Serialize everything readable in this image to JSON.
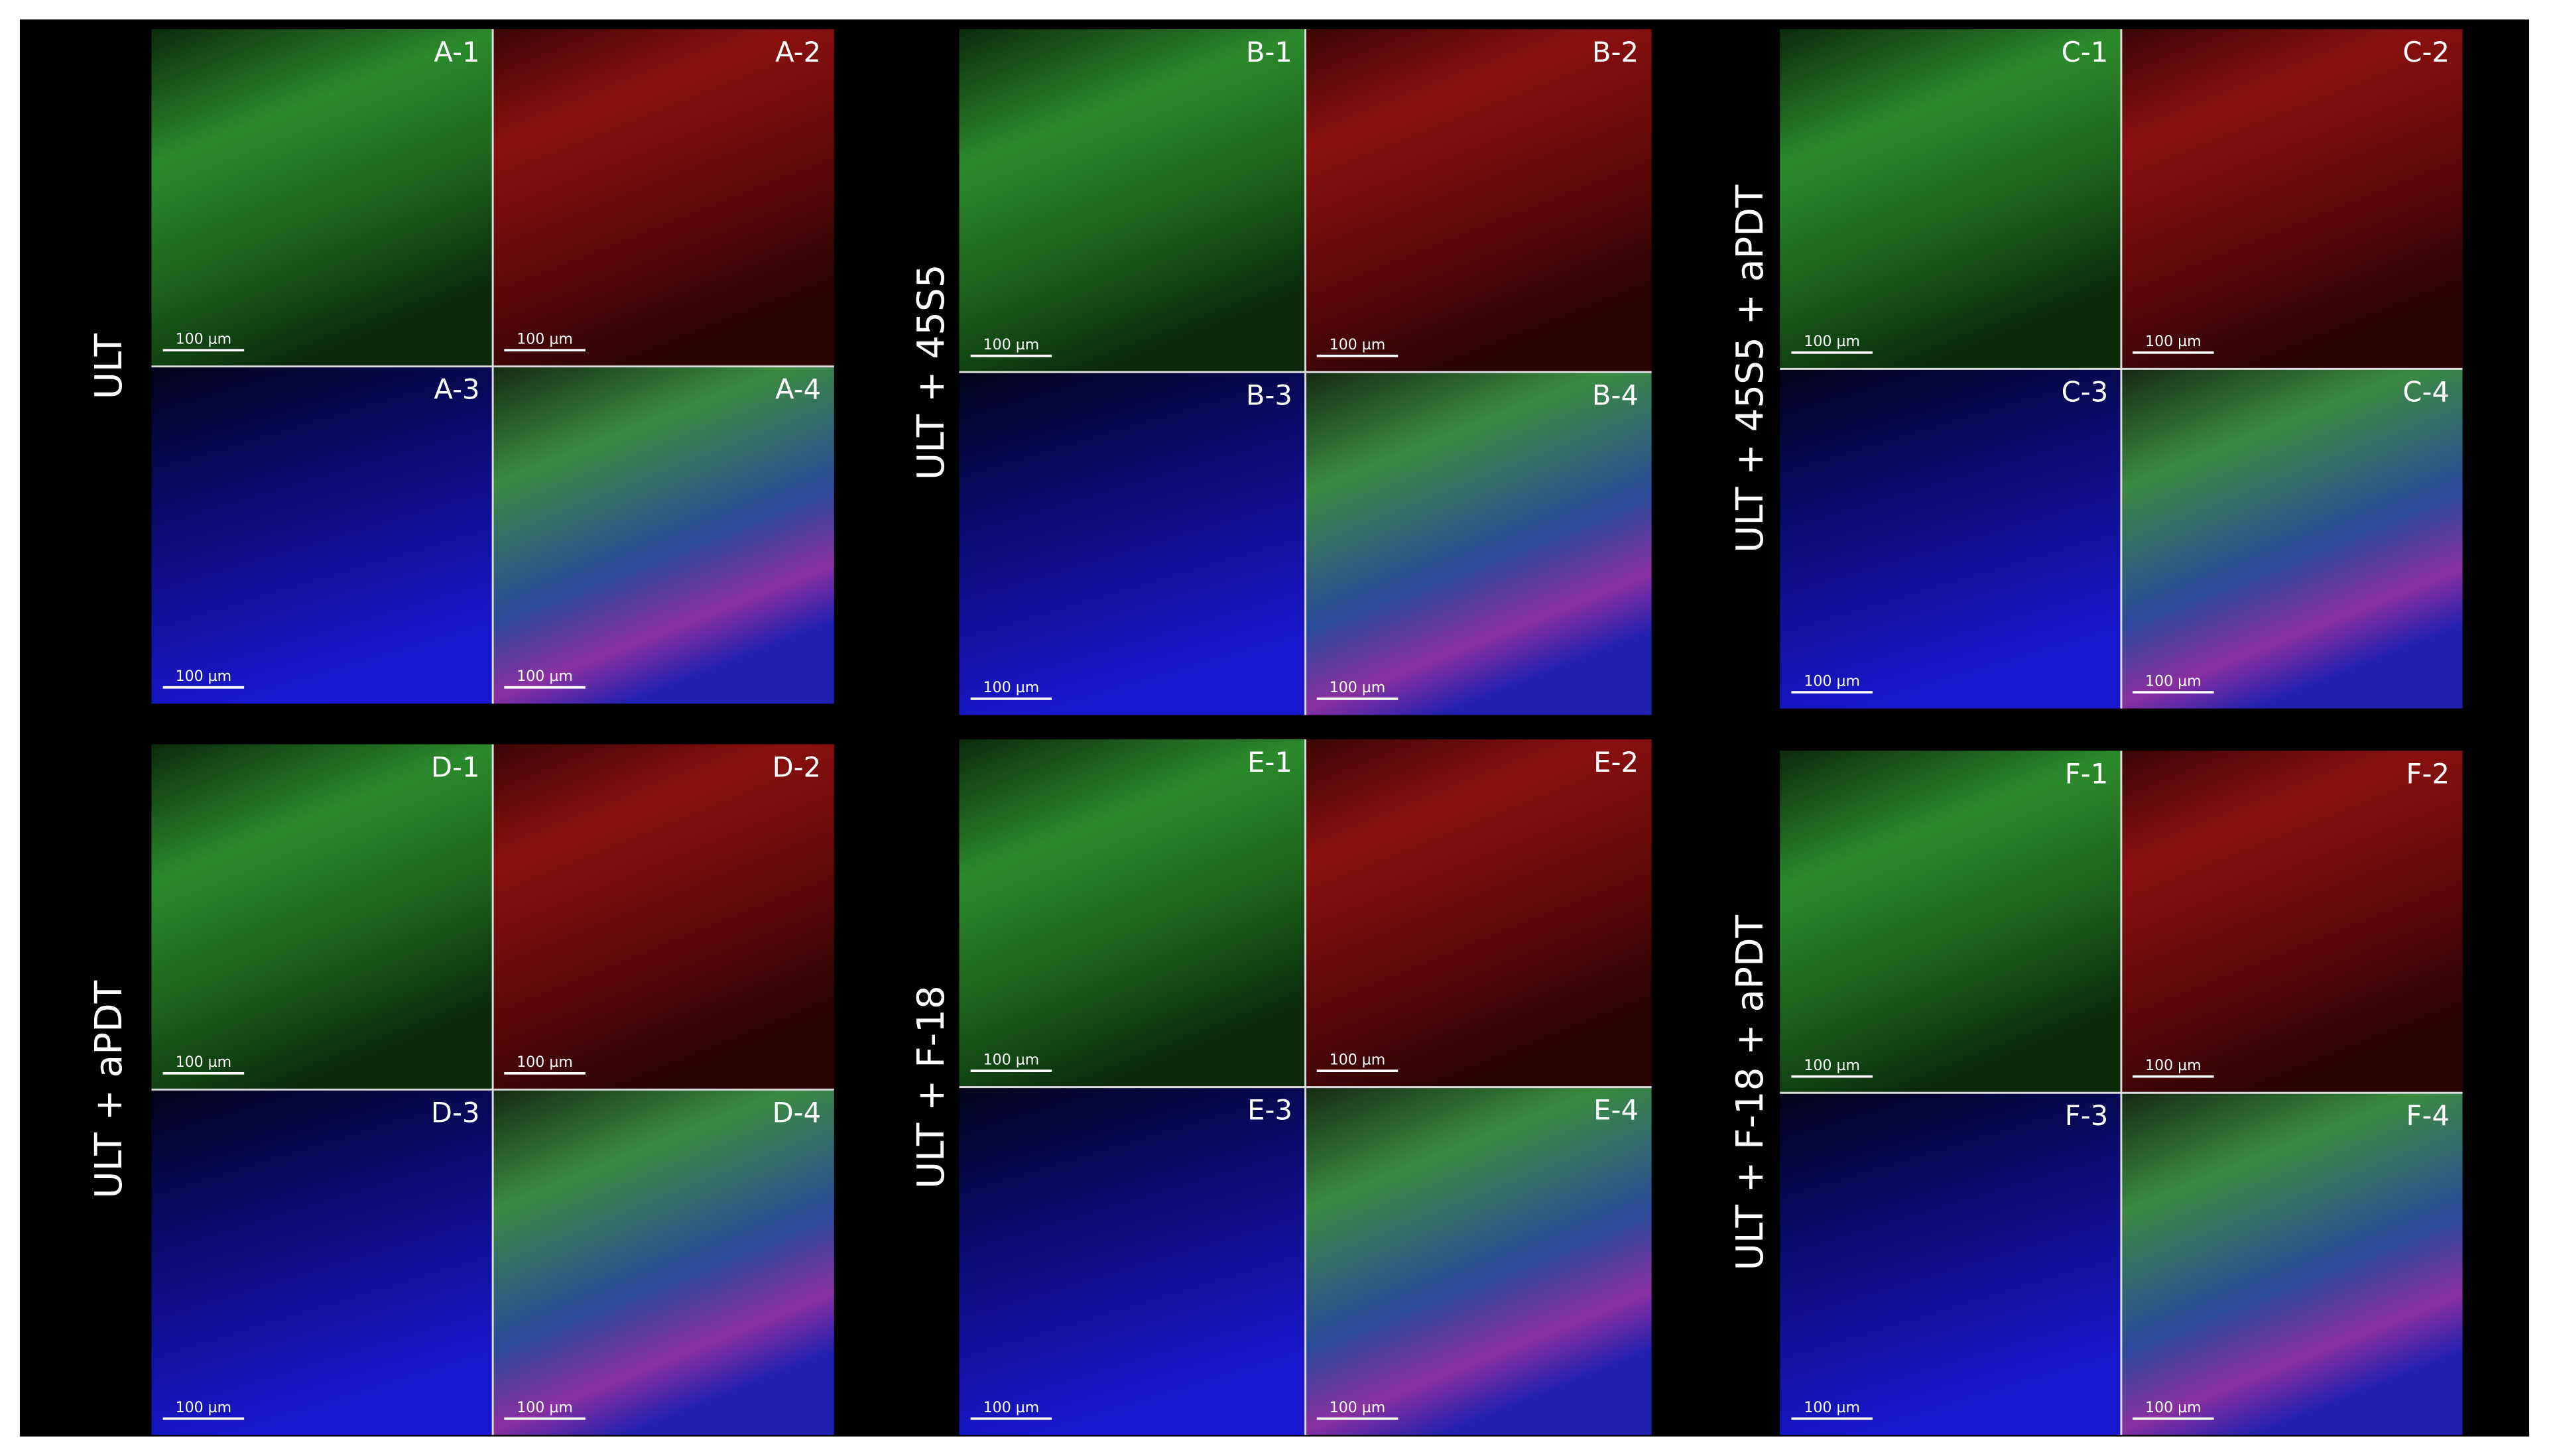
{
  "groups": [
    {
      "label": "ULT",
      "panels": [
        {
          "label": "A-1",
          "scale_bar": "100 µm"
        },
        {
          "label": "A-2",
          "scale_bar": "100 µm"
        },
        {
          "label": "A-3",
          "scale_bar": "100 µm"
        },
        {
          "label": "A-4",
          "scale_bar": "100 µm"
        }
      ]
    },
    {
      "label": "ULT + 45S5",
      "panels": [
        {
          "label": "B-1",
          "scale_bar": "100 µm"
        },
        {
          "label": "B-2",
          "scale_bar": "100 µm"
        },
        {
          "label": "B-3",
          "scale_bar": "100 µm"
        },
        {
          "label": "B-4",
          "scale_bar": "100 µm"
        }
      ]
    },
    {
      "label": "ULT + 45S5 + aPDT",
      "panels": [
        {
          "label": "C-1",
          "scale_bar": "100 µm"
        },
        {
          "label": "C-2",
          "scale_bar": "100 µm"
        },
        {
          "label": "C-3",
          "scale_bar": "100 µm"
        },
        {
          "label": "C-4",
          "scale_bar": "100 µm"
        }
      ]
    },
    {
      "label": "ULT + aPDT",
      "panels": [
        {
          "label": "D-1",
          "scale_bar": "100 µm"
        },
        {
          "label": "D-2",
          "scale_bar": "100 µm"
        },
        {
          "label": "D-3",
          "scale_bar": "100 µm"
        },
        {
          "label": "D-4",
          "scale_bar": "100 µm"
        }
      ]
    },
    {
      "label": "ULT + F-18",
      "panels": [
        {
          "label": "E-1",
          "scale_bar": "100 µm"
        },
        {
          "label": "E-2",
          "scale_bar": "100 µm"
        },
        {
          "label": "E-3",
          "scale_bar": "100 µm"
        },
        {
          "label": "E-4",
          "scale_bar": "100 µm"
        }
      ]
    },
    {
      "label": "ULT + F-18 + aPDT",
      "panels": [
        {
          "label": "F-1",
          "scale_bar": "100 µm"
        },
        {
          "label": "F-2",
          "scale_bar": "100 µm"
        },
        {
          "label": "F-3",
          "scale_bar": "100 µm"
        },
        {
          "label": "F-4",
          "scale_bar": "100 µm"
        }
      ]
    }
  ]
}
